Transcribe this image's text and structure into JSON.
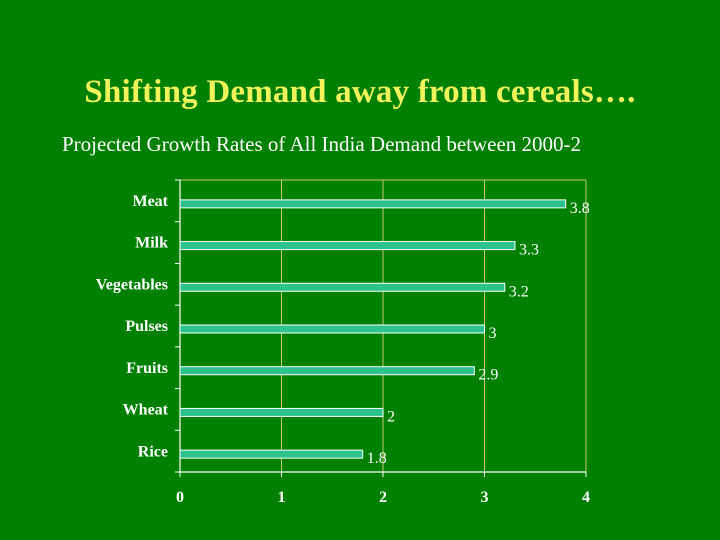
{
  "slide": {
    "title": "Shifting Demand away from cereals….",
    "subtitle": "Projected Growth Rates of All India Demand between 2000-2"
  },
  "colors": {
    "background": "#008000",
    "title": "#f2f25a",
    "bar_fill": "#2bc28c",
    "bar_edge": "#ffffff",
    "axis": "#ffffff",
    "grid": "#c8c870"
  },
  "chart_data": {
    "type": "bar",
    "orientation": "horizontal",
    "categories": [
      "Meat",
      "Milk",
      "Vegetables",
      "Pulses",
      "Fruits",
      "Wheat",
      "Rice"
    ],
    "values": [
      3.8,
      3.3,
      3.2,
      3,
      2.9,
      2,
      1.8
    ],
    "value_labels": [
      "3.8",
      "3.3",
      "3.2",
      "3",
      "2.9",
      "2",
      "1.8"
    ],
    "xlim": [
      0,
      4
    ],
    "x_ticks": [
      "0",
      "1",
      "2",
      "3",
      "4"
    ],
    "grid": true,
    "legend": false
  }
}
